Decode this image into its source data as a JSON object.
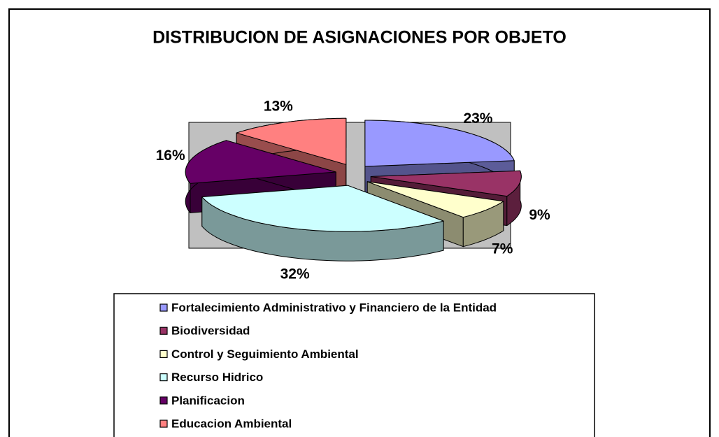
{
  "chart_data": {
    "type": "pie",
    "title": "DISTRIBUCION DE ASIGNACIONES POR OBJETO",
    "categories": [
      "Fortalecimiento Administrativo y Financiero de la Entidad",
      "Biodiversidad",
      "Control y Seguimiento Ambiental",
      "Recurso Hidrico",
      "Planificacion",
      "Educacion Ambiental"
    ],
    "values": [
      23,
      9,
      7,
      32,
      16,
      13
    ],
    "value_labels": [
      "23%",
      "9%",
      "7%",
      "32%",
      "16%",
      "13%"
    ],
    "colors": [
      "#9999ff",
      "#993366",
      "#ffffcc",
      "#ccffff",
      "#660066",
      "#ff8080"
    ],
    "legend": "bottom"
  }
}
